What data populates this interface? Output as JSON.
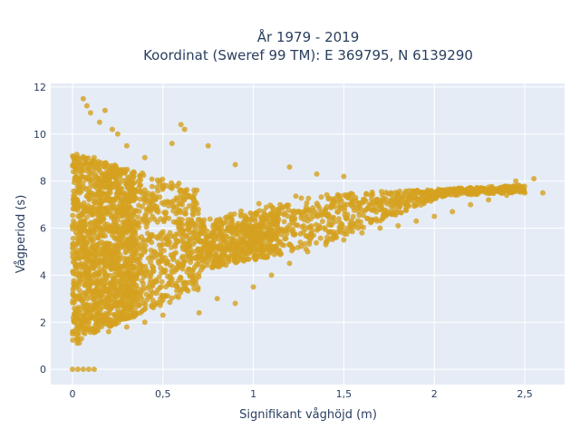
{
  "chart_data": {
    "type": "scatter",
    "title_line1": "År 1979 - 2019",
    "title_line2": "Koordinat (Sweref 99 TM): E 369795, N 6139290",
    "xlabel": "Signifikant våghöjd (m)",
    "ylabel": "Vågperiod (s)",
    "xlim": [
      -0.12,
      2.72
    ],
    "ylim": [
      -0.65,
      12.15
    ],
    "x_ticks": [
      0,
      0.5,
      1,
      1.5,
      2,
      2.5
    ],
    "x_tick_labels": [
      "0",
      "0,5",
      "1",
      "1,5",
      "2",
      "2,5"
    ],
    "y_ticks": [
      0,
      2,
      4,
      6,
      8,
      10,
      12
    ],
    "y_tick_labels": [
      "0",
      "2",
      "4",
      "6",
      "8",
      "10",
      "12"
    ],
    "grid": true,
    "legend": "none",
    "colors": {
      "marker": "#d4a11f",
      "plot_bg": "#e5ecf6",
      "grid": "#ffffff",
      "text": "#2a3f5f"
    },
    "points": [
      [
        0.0,
        0.0
      ],
      [
        0.03,
        0.0
      ],
      [
        0.06,
        0.0
      ],
      [
        0.09,
        0.0
      ],
      [
        0.12,
        0.0
      ],
      [
        0.0,
        1.5
      ],
      [
        0.01,
        2.0
      ],
      [
        0.02,
        8.5
      ],
      [
        0.05,
        1.3
      ],
      [
        0.06,
        3.0
      ],
      [
        0.08,
        5.0
      ],
      [
        0.1,
        6.0
      ],
      [
        0.12,
        9.0
      ],
      [
        0.06,
        11.5
      ],
      [
        0.08,
        11.2
      ],
      [
        0.1,
        10.9
      ],
      [
        0.15,
        10.5
      ],
      [
        0.18,
        11.0
      ],
      [
        0.2,
        1.6
      ],
      [
        0.22,
        10.2
      ],
      [
        0.25,
        10.0
      ],
      [
        0.3,
        1.8
      ],
      [
        0.3,
        9.5
      ],
      [
        0.4,
        2.0
      ],
      [
        0.4,
        9.0
      ],
      [
        0.5,
        2.3
      ],
      [
        0.55,
        9.6
      ],
      [
        0.6,
        10.4
      ],
      [
        0.62,
        10.2
      ],
      [
        0.7,
        2.4
      ],
      [
        0.75,
        9.5
      ],
      [
        0.8,
        3.0
      ],
      [
        0.9,
        2.8
      ],
      [
        0.9,
        8.7
      ],
      [
        1.0,
        3.5
      ],
      [
        1.1,
        4.0
      ],
      [
        1.2,
        4.5
      ],
      [
        1.2,
        8.6
      ],
      [
        1.3,
        5.0
      ],
      [
        1.35,
        8.3
      ],
      [
        1.4,
        5.3
      ],
      [
        1.5,
        5.5
      ],
      [
        1.5,
        8.2
      ],
      [
        1.6,
        5.8
      ],
      [
        1.7,
        6.0
      ],
      [
        1.8,
        6.1
      ],
      [
        1.9,
        6.3
      ],
      [
        2.0,
        6.5
      ],
      [
        2.1,
        6.7
      ],
      [
        2.2,
        7.0
      ],
      [
        2.3,
        7.2
      ],
      [
        2.4,
        7.4
      ],
      [
        2.45,
        8.0
      ],
      [
        2.5,
        7.5
      ],
      [
        2.55,
        8.1
      ],
      [
        2.6,
        7.5
      ]
    ]
  }
}
